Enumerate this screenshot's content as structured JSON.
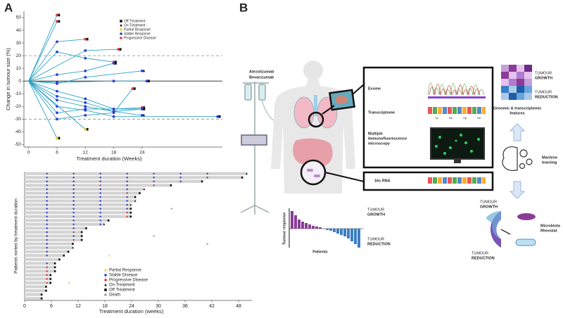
{
  "panel_labels": {
    "a": "A",
    "b": "B"
  },
  "chart_data": [
    {
      "type": "line",
      "ylabel": "Change in tumour size (%)",
      "xlabel": "Treatment duration (Weeks)",
      "xlim": [
        -1,
        41
      ],
      "xticks": [
        0,
        6,
        12,
        18,
        24
      ],
      "ylim": [
        -52,
        55
      ],
      "yticks": [
        -50,
        -40,
        -30,
        -20,
        -10,
        0,
        10,
        20,
        30,
        40,
        50
      ],
      "reference_lines": [
        20,
        -30
      ],
      "line_color": "#2ba3c4",
      "legend_corner": "top-right",
      "legend": [
        {
          "name": "Off Treatment",
          "color": "#111111",
          "marker": "square"
        },
        {
          "name": "On Treatment",
          "color": "#111111",
          "marker": "triangle"
        },
        {
          "name": "Partial Response",
          "color": "#e8d21c",
          "marker": "circle"
        },
        {
          "name": "Stable Response",
          "color": "#2f3bd6",
          "marker": "circle"
        },
        {
          "name": "Progressive Disease",
          "color": "#e2323a",
          "marker": "circle"
        }
      ],
      "series": [
        {
          "x": [
            0,
            6
          ],
          "values": [
            0,
            52
          ],
          "response": 4,
          "treatment": 0
        },
        {
          "x": [
            0,
            6
          ],
          "values": [
            0,
            47
          ],
          "response": 4,
          "treatment": 0
        },
        {
          "x": [
            0,
            6,
            12
          ],
          "values": [
            0,
            31,
            33
          ],
          "response": 4,
          "treatment": 0
        },
        {
          "x": [
            0,
            6,
            12,
            18
          ],
          "values": [
            0,
            23,
            18,
            15
          ],
          "response": 4,
          "treatment": 0
        },
        {
          "x": [
            0,
            12,
            19
          ],
          "values": [
            0,
            24,
            25
          ],
          "response": 4,
          "treatment": 0
        },
        {
          "x": [
            0,
            6,
            12,
            18
          ],
          "values": [
            0,
            5,
            8,
            14
          ],
          "response": 3,
          "treatment": 0
        },
        {
          "x": [
            0,
            6,
            12,
            24
          ],
          "values": [
            0,
            -2,
            3,
            8
          ],
          "response": 3,
          "treatment": 1
        },
        {
          "x": [
            0,
            6,
            18,
            25
          ],
          "values": [
            0,
            -1,
            0,
            0
          ],
          "response": 3,
          "treatment": 0
        },
        {
          "x": [
            0,
            6,
            12,
            18,
            24
          ],
          "values": [
            0,
            -8,
            -14,
            -22,
            -22
          ],
          "response": 4,
          "treatment": 0
        },
        {
          "x": [
            0,
            6,
            12,
            18,
            24
          ],
          "values": [
            0,
            -12,
            -17,
            -24,
            -27
          ],
          "response": 3,
          "treatment": 1
        },
        {
          "x": [
            0,
            6,
            12,
            18,
            40
          ],
          "values": [
            0,
            -20,
            -23,
            -28,
            -28
          ],
          "response": 3,
          "treatment": 0
        },
        {
          "x": [
            0,
            6,
            12,
            18,
            24
          ],
          "values": [
            0,
            -25,
            -22,
            -22,
            -21
          ],
          "response": 4,
          "treatment": 0
        },
        {
          "x": [
            0,
            6,
            12,
            18,
            22
          ],
          "values": [
            0,
            -30,
            -27,
            -25,
            -6
          ],
          "response": 4,
          "treatment": 0
        },
        {
          "x": [
            0,
            6,
            12,
            18,
            24
          ],
          "values": [
            0,
            -15,
            -20,
            -24,
            -22
          ],
          "response": 3,
          "treatment": 0
        },
        {
          "x": [
            0,
            6
          ],
          "values": [
            0,
            -45
          ],
          "response": 2,
          "treatment": 0
        },
        {
          "x": [
            0,
            12
          ],
          "values": [
            0,
            -38
          ],
          "response": 2,
          "treatment": 0
        }
      ]
    },
    {
      "type": "bar",
      "orientation": "horizontal",
      "ylabel": "Patients sorted by treatment duration",
      "xlabel": "Treatment duration (weeks)",
      "xlim": [
        0,
        51
      ],
      "xticks": [
        0,
        6,
        12,
        18,
        24,
        30,
        36,
        42,
        48
      ],
      "bar_color": "#d3d3d3",
      "legend_corner": "bottom-center",
      "legend": [
        {
          "name": "Partial Response",
          "color": "#e8d21c",
          "marker": "star"
        },
        {
          "name": "Stable Disease",
          "color": "#2f3bd6",
          "marker": "circle"
        },
        {
          "name": "Progressive Disease",
          "color": "#e2323a",
          "marker": "circle"
        },
        {
          "name": "On Treatment",
          "color": "#111111",
          "marker": "triangle"
        },
        {
          "name": "Off Treatment",
          "color": "#111111",
          "marker": "square"
        },
        {
          "name": "Death",
          "color": "#9aa09a",
          "marker": "circle"
        }
      ],
      "rows": [
        {
          "duration": 50,
          "stable": [
            5,
            11,
            17,
            23,
            29,
            35,
            41
          ],
          "progressive": [],
          "on_treatment": true
        },
        {
          "duration": 49,
          "stable": [
            5,
            11,
            17,
            23,
            29,
            35,
            41
          ],
          "progressive": [],
          "on_treatment": false
        },
        {
          "duration": 40,
          "stable": [
            5,
            11,
            17,
            23,
            29,
            35
          ],
          "progressive": [],
          "on_treatment": false
        },
        {
          "duration": 33,
          "stable": [
            5,
            11,
            23
          ],
          "progressive": [
            17,
            29
          ],
          "on_treatment": false
        },
        {
          "duration": 27,
          "stable": [
            5,
            11,
            17,
            23
          ],
          "progressive": [],
          "on_treatment": true
        },
        {
          "duration": 26,
          "stable": [
            5,
            11,
            17
          ],
          "progressive": [
            23
          ],
          "on_treatment": false
        },
        {
          "duration": 25,
          "stable": [
            5,
            11,
            17,
            23
          ],
          "progressive": [],
          "on_treatment": false
        },
        {
          "duration": 25,
          "stable": [
            5,
            11,
            17,
            23
          ],
          "progressive": [],
          "on_treatment": true
        },
        {
          "duration": 24,
          "stable": [
            5,
            11,
            17,
            23
          ],
          "progressive": [],
          "on_treatment": true
        },
        {
          "duration": 24,
          "stable": [
            5,
            11,
            17,
            23
          ],
          "progressive": [],
          "on_treatment": false,
          "death": [
            33
          ]
        },
        {
          "duration": 24,
          "stable": [
            5,
            11,
            17
          ],
          "progressive": [
            23
          ],
          "on_treatment": false
        },
        {
          "duration": 24,
          "stable": [
            5,
            11,
            17
          ],
          "progressive": [
            23
          ],
          "on_treatment": false
        },
        {
          "duration": 19,
          "stable": [
            5,
            11,
            17
          ],
          "progressive": [],
          "on_treatment": false
        },
        {
          "duration": 18,
          "stable": [
            5,
            11,
            17
          ],
          "progressive": [],
          "on_treatment": true
        },
        {
          "duration": 14,
          "stable": [
            5,
            11
          ],
          "progressive": [],
          "on_treatment": false
        },
        {
          "duration": 13,
          "stable": [
            5
          ],
          "progressive": [
            11
          ],
          "on_treatment": false
        },
        {
          "duration": 13,
          "stable": [
            5,
            11
          ],
          "progressive": [],
          "on_treatment": false,
          "death": [
            29
          ]
        },
        {
          "duration": 13,
          "stable": [
            5
          ],
          "progressive": [
            11
          ],
          "on_treatment": false
        },
        {
          "duration": 11,
          "stable": [
            5
          ],
          "progressive": [],
          "on_treatment": false,
          "death": [
            41
          ]
        },
        {
          "duration": 11,
          "stable": [
            5
          ],
          "progressive": [],
          "on_treatment": true
        },
        {
          "duration": 10,
          "stable": [
            5
          ],
          "progressive": [],
          "on_treatment": false
        },
        {
          "duration": 9,
          "stable": [
            5
          ],
          "progressive": [],
          "on_treatment": false,
          "partial": [
            19
          ]
        },
        {
          "duration": 8,
          "stable": [],
          "progressive": [],
          "on_treatment": false
        },
        {
          "duration": 7,
          "stable": [
            5
          ],
          "progressive": [],
          "on_treatment": false
        },
        {
          "duration": 7,
          "stable": [],
          "progressive": [
            5
          ],
          "on_treatment": false
        },
        {
          "duration": 7,
          "stable": [],
          "progressive": [
            5
          ],
          "on_treatment": false
        },
        {
          "duration": 6,
          "stable": [],
          "progressive": [
            5
          ],
          "on_treatment": false
        },
        {
          "duration": 6,
          "stable": [],
          "progressive": [
            5
          ],
          "on_treatment": false
        },
        {
          "duration": 6,
          "stable": [],
          "progressive": [
            5
          ],
          "on_treatment": false,
          "partial": [
            10
          ]
        },
        {
          "duration": 5,
          "stable": [],
          "progressive": [],
          "on_treatment": false
        },
        {
          "duration": 5,
          "stable": [],
          "progressive": [],
          "on_treatment": false
        },
        {
          "duration": 4,
          "stable": [],
          "progressive": [],
          "on_treatment": false
        },
        {
          "duration": 4,
          "stable": [],
          "progressive": [],
          "on_treatment": false
        }
      ]
    }
  ],
  "diagram": {
    "drugs": [
      "Atezolizumab",
      "Bevacizumab"
    ],
    "omics": {
      "exome": "Exome",
      "transcriptome": "Transcriptome",
      "codons": [
        "Tyr",
        "Ser",
        "Gly",
        "Ser"
      ],
      "microscopy": [
        "Multiple",
        "Immunofluorescence",
        "microscopy"
      ],
      "rna": "16s RNA"
    },
    "waterfall": {
      "axis": "Tumour response",
      "xlabel": "Patients",
      "growth": [
        "TUMOUR",
        "GROWTH"
      ],
      "reduction": [
        "TUMOUR",
        "REDUCTION"
      ]
    },
    "features": {
      "growth": [
        "TUMOUR",
        "GROWTH"
      ],
      "reduction": [
        "TUMOUR",
        "REDUCTION"
      ],
      "caption": [
        "Genomic & transcriptomic",
        "features"
      ]
    },
    "ml": [
      "Machine",
      "learning"
    ],
    "rheostat": {
      "growth": [
        "TUMOUR",
        "GROWTH"
      ],
      "reduction": [
        "TUMOUR",
        "REDUCTION"
      ],
      "caption": [
        "Microbiota",
        "Rheostat"
      ]
    }
  }
}
